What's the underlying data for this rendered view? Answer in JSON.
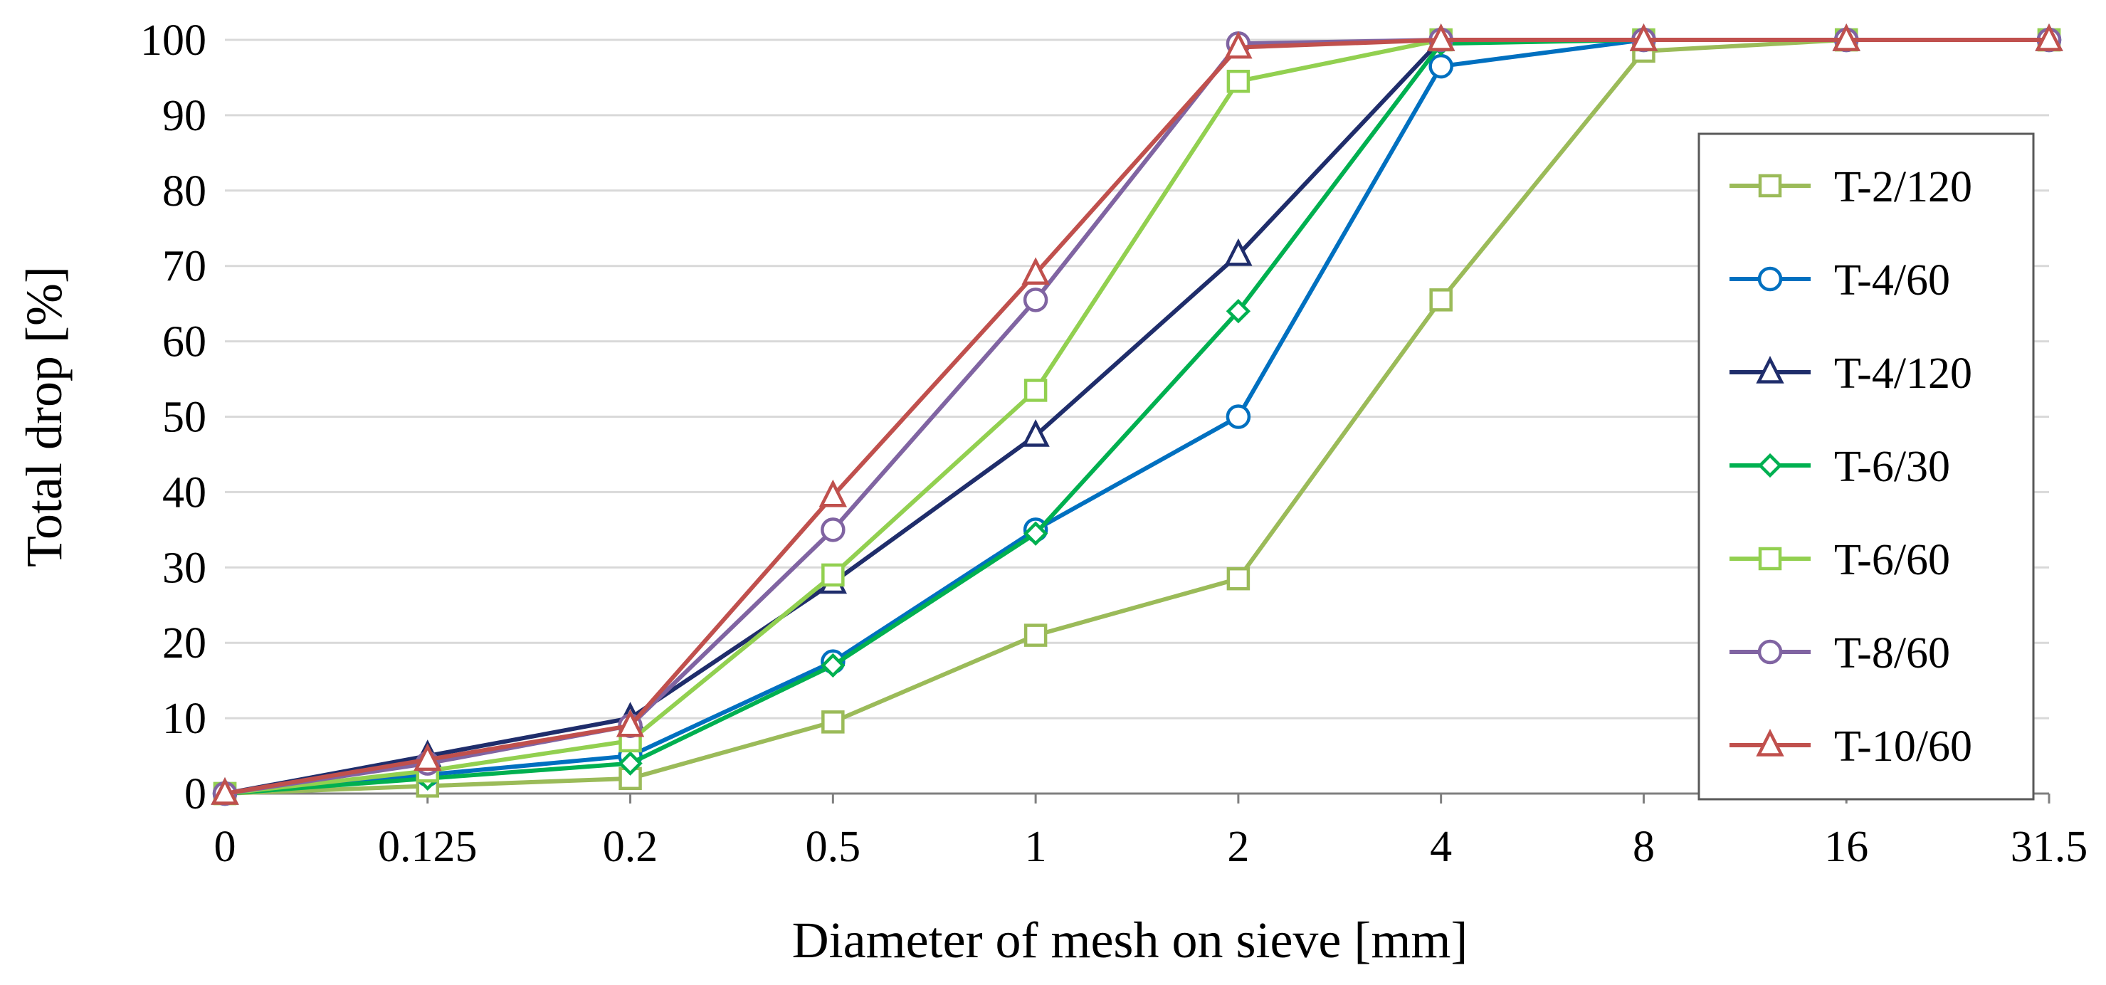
{
  "chart_data": {
    "type": "line",
    "title": "",
    "xlabel": "Diameter of mesh on sieve [mm]",
    "ylabel": "Total drop [%]",
    "categories": [
      "0",
      "0.125",
      "0.2",
      "0.5",
      "1",
      "2",
      "4",
      "8",
      "16",
      "31.5"
    ],
    "ylim": [
      0,
      100
    ],
    "yticks": [
      0,
      10,
      20,
      30,
      40,
      50,
      60,
      70,
      80,
      90,
      100
    ],
    "grid": "horizontal",
    "legend_position": "right",
    "series": [
      {
        "name": "T-2/120",
        "color": "#9bbb59",
        "marker": "square",
        "values": [
          0,
          1.0,
          2.0,
          9.5,
          21,
          28.5,
          65.5,
          98.5,
          100,
          100
        ]
      },
      {
        "name": "T-4/60",
        "color": "#0070c0",
        "marker": "circle",
        "values": [
          0,
          2.5,
          5.0,
          17.5,
          35,
          50,
          96.5,
          100,
          100,
          100
        ]
      },
      {
        "name": "T-4/120",
        "color": "#1f2d6b",
        "marker": "triangle",
        "values": [
          0,
          5.0,
          10.0,
          28,
          47.5,
          71.5,
          100,
          100,
          100,
          100
        ]
      },
      {
        "name": "T-6/30",
        "color": "#00b050",
        "marker": "diamond",
        "values": [
          0,
          2.0,
          4.0,
          17,
          34.5,
          64,
          99.5,
          100,
          100,
          100
        ]
      },
      {
        "name": "T-6/60",
        "color": "#92d050",
        "marker": "square",
        "values": [
          0,
          3.0,
          7.0,
          29,
          53.5,
          94.5,
          100,
          100,
          100,
          100
        ]
      },
      {
        "name": "T-8/60",
        "color": "#8064a2",
        "marker": "circle",
        "values": [
          0,
          4.0,
          9.0,
          35,
          65.5,
          99.5,
          100,
          100,
          100,
          100
        ]
      },
      {
        "name": "T-10/60",
        "color": "#c0504d",
        "marker": "triangle",
        "values": [
          0,
          4.5,
          9.0,
          39.5,
          69,
          99,
          100,
          100,
          100,
          100
        ]
      }
    ]
  }
}
